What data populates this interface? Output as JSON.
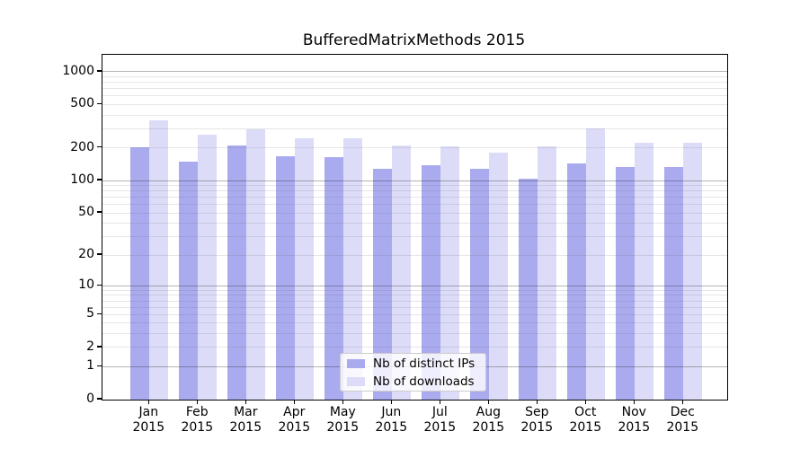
{
  "chart_data": {
    "type": "bar",
    "title": "BufferedMatrixMethods 2015",
    "months": [
      "Jan",
      "Feb",
      "Mar",
      "Apr",
      "May",
      "Jun",
      "Jul",
      "Aug",
      "Sep",
      "Oct",
      "Nov",
      "Dec"
    ],
    "x_tick_second_line": "2015",
    "series": [
      {
        "name": "Nb of distinct IPs",
        "color": "#aaaaef",
        "values": [
          204,
          150,
          210,
          167,
          163,
          128,
          138,
          129,
          104,
          145,
          133,
          134
        ]
      },
      {
        "name": "Nb of downloads",
        "color": "#dcdcf8",
        "values": [
          358,
          266,
          297,
          244,
          243,
          210,
          205,
          180,
          208,
          300,
          222,
          225
        ]
      }
    ],
    "yticks": [
      0,
      1,
      2,
      5,
      10,
      20,
      50,
      100,
      200,
      500,
      1000
    ],
    "major_gridline_values": [
      1,
      10,
      100,
      1000
    ],
    "yscale": "log10(1+y)",
    "ylim": [
      0,
      1430
    ],
    "grid": true,
    "legend_position": "lower center"
  },
  "colors": {
    "bar_distinct_ips": "#aaaaef",
    "bar_downloads": "#dcdcf8",
    "grid_minor": "#e6e6e6",
    "grid_major": "#b4b4b4",
    "spine": "#000000",
    "background": "#ffffff"
  }
}
